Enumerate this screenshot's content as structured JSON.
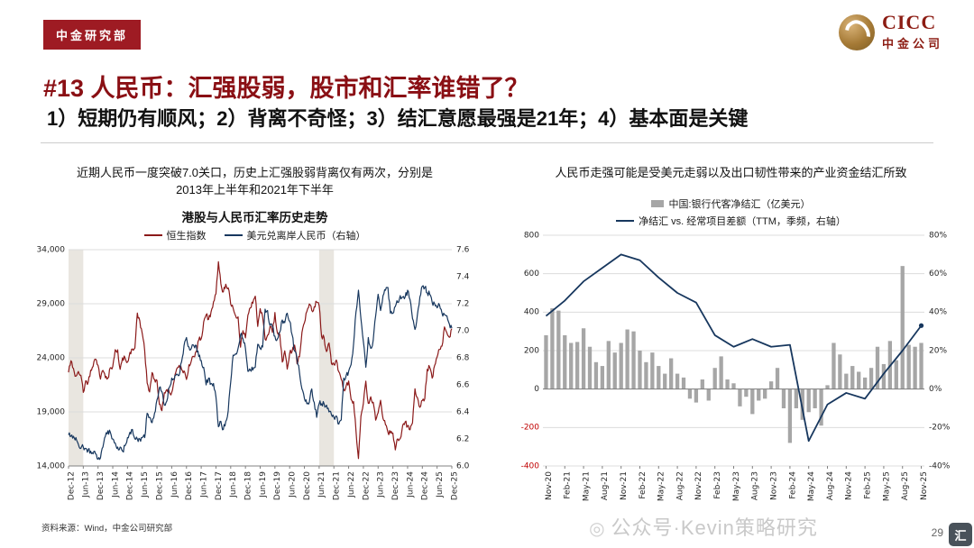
{
  "page": {
    "badge": "中金研究部",
    "logo_en": "CICC",
    "logo_cn": "中金公司",
    "title": "#13 人民币：汇强股弱，股市和汇率谁错了？",
    "subtitle": "1）短期仍有顺风；2）背离不奇怪；3）结汇意愿最强是21年；4）基本面是关键",
    "left_caption_line1": "近期人民币一度突破7.0关口，历史上汇强股弱背离仅有两次，分别是",
    "left_caption_line2": "2013年上半年和2021年下半年",
    "right_caption": "人民币走强可能是受美元走弱以及出口韧性带来的产业资金结汇所致",
    "source": "资料来源：Wind，中金公司研究部",
    "watermark_icon": "◎",
    "watermark": "公众号·Kevin策略研究",
    "page_number": "29",
    "corner_logo": "汇",
    "accent_color": "#8A0F14"
  },
  "chart_data": [
    {
      "type": "line",
      "title": "港股与人民币汇率历史走势",
      "legend": [
        {
          "label": "恒生指数",
          "color": "#8B1A1A"
        },
        {
          "label": "美元兑离岸人民币（右轴）",
          "color": "#17375E"
        }
      ],
      "left_axis": {
        "min": 14000,
        "max": 34000,
        "step": 5000
      },
      "right_axis": {
        "min": 6.0,
        "max": 7.6,
        "step": 0.2
      },
      "x_tick_every": 6,
      "x_tick_labels": [
        "Dec-12",
        "Jun-13",
        "Dec-13",
        "Jun-14",
        "Dec-14",
        "Jun-15",
        "Dec-15",
        "Jun-16",
        "Dec-16",
        "Jun-17",
        "Dec-17",
        "Jun-18",
        "Dec-18",
        "Jun-19",
        "Dec-19",
        "Jun-20",
        "Dec-20",
        "Jun-21",
        "Dec-21",
        "Jun-22",
        "Dec-22",
        "Jun-23",
        "Dec-23",
        "Jun-24",
        "Dec-24",
        "Jun-25",
        "Dec-25"
      ],
      "shaded_regions_idx": [
        [
          0,
          6
        ],
        [
          102,
          108
        ]
      ],
      "shade_color": "#e9e6e0",
      "series_left": [
        22657,
        23730,
        23020,
        22300,
        22737,
        22392,
        20803,
        21884,
        21732,
        22860,
        23206,
        23881,
        23306,
        22035,
        22837,
        22151,
        22134,
        23082,
        23190,
        24757,
        24742,
        22933,
        23998,
        23987,
        23605,
        24507,
        24823,
        24901,
        28133,
        27424,
        26250,
        24636,
        21671,
        20846,
        22640,
        21996,
        21914,
        19683,
        19112,
        20777,
        21067,
        20815,
        20794,
        21891,
        22977,
        23297,
        22935,
        22790,
        22001,
        23361,
        23741,
        24112,
        24615,
        25661,
        25765,
        27324,
        27970,
        27554,
        28246,
        29177,
        29919,
        32887,
        30845,
        30093,
        30808,
        30469,
        28955,
        28583,
        27889,
        27789,
        24980,
        26507,
        25846,
        27942,
        28633,
        29051,
        29699,
        26901,
        28543,
        27778,
        25725,
        26092,
        26907,
        26346,
        28190,
        26313,
        26130,
        23603,
        24644,
        22961,
        24427,
        24595,
        25177,
        23459,
        24107,
        26341,
        27231,
        28284,
        28980,
        28378,
        28725,
        29152,
        28828,
        25961,
        25879,
        24576,
        25377,
        23475,
        23398,
        23802,
        22713,
        21997,
        21089,
        21415,
        21860,
        20157,
        19954,
        17223,
        14687,
        18597,
        19781,
        21842,
        19786,
        20400,
        19895,
        18234,
        18916,
        20079,
        18382,
        17810,
        17112,
        17043,
        17047,
        15485,
        16511,
        16541,
        17763,
        18080,
        17719,
        17345,
        17989,
        21134,
        20317,
        19424,
        20060,
        20225,
        22941,
        23120,
        22119,
        23290,
        24072,
        24773,
        25078,
        26856,
        26300,
        25900,
        26700
      ],
      "series_right": [
        6.23,
        6.22,
        6.22,
        6.21,
        6.16,
        6.13,
        6.14,
        6.13,
        6.12,
        6.11,
        6.09,
        6.09,
        6.05,
        6.06,
        6.14,
        6.22,
        6.26,
        6.25,
        6.2,
        6.17,
        6.14,
        6.14,
        6.11,
        6.15,
        6.21,
        6.25,
        6.27,
        6.2,
        6.2,
        6.2,
        6.21,
        6.21,
        6.39,
        6.36,
        6.32,
        6.39,
        6.49,
        6.58,
        6.55,
        6.45,
        6.48,
        6.58,
        6.65,
        6.64,
        6.68,
        6.67,
        6.77,
        6.89,
        6.95,
        6.88,
        6.87,
        6.89,
        6.89,
        6.81,
        6.78,
        6.73,
        6.6,
        6.65,
        6.61,
        6.61,
        6.51,
        6.29,
        6.33,
        6.27,
        6.33,
        6.41,
        6.62,
        6.82,
        6.83,
        6.87,
        6.97,
        6.94,
        6.87,
        6.7,
        6.71,
        6.71,
        6.73,
        6.9,
        6.87,
        6.88,
        7.16,
        7.15,
        7.04,
        7.03,
        6.96,
        6.94,
        6.99,
        7.08,
        7.06,
        7.13,
        7.07,
        6.97,
        6.85,
        6.79,
        6.69,
        6.57,
        6.5,
        6.46,
        6.47,
        6.57,
        6.47,
        6.36,
        6.46,
        6.46,
        6.46,
        6.45,
        6.4,
        6.38,
        6.36,
        6.37,
        6.31,
        6.34,
        6.65,
        6.67,
        6.7,
        6.75,
        6.9,
        7.14,
        7.3,
        7.09,
        6.92,
        6.73,
        6.95,
        6.87,
        6.93,
        7.11,
        7.27,
        7.15,
        7.26,
        7.3,
        7.32,
        7.13,
        7.13,
        7.18,
        7.21,
        7.26,
        7.25,
        7.25,
        7.3,
        7.23,
        7.09,
        7.01,
        7.12,
        7.25,
        7.33,
        7.32,
        7.28,
        7.27,
        7.21,
        7.2,
        7.17,
        7.19,
        7.13,
        7.12,
        7.11,
        7.05,
        7.02
      ]
    },
    {
      "type": "bar+line",
      "legend": [
        {
          "label": "中国:银行代客净结汇（亿美元）",
          "color": "#A6A6A6",
          "marker": "bar"
        },
        {
          "label": "净结汇 vs. 经常项目差额（TTM，季频，右轴）",
          "color": "#17375E",
          "marker": "line"
        }
      ],
      "left_axis": {
        "min": -400,
        "max": 800,
        "step": 200
      },
      "right_axis": {
        "min": -40,
        "max": 80,
        "step": 20,
        "suffix": "%"
      },
      "x_tick_every": 3,
      "x_tick_labels": [
        "Nov-20",
        "Feb-21",
        "May-21",
        "Aug-21",
        "Nov-21",
        "Feb-22",
        "May-22",
        "Aug-22",
        "Nov-22",
        "Feb-23",
        "May-23",
        "Aug-23",
        "Nov-23",
        "Feb-24",
        "May-24",
        "Aug-24",
        "Nov-24",
        "Feb-25",
        "May-25",
        "Aug-25",
        "Nov-25"
      ],
      "bar_values": [
        280,
        420,
        408,
        280,
        240,
        245,
        316,
        220,
        140,
        120,
        250,
        190,
        240,
        310,
        300,
        200,
        140,
        190,
        120,
        80,
        160,
        80,
        60,
        -50,
        -70,
        50,
        -60,
        110,
        170,
        50,
        30,
        -90,
        -40,
        -130,
        -60,
        -50,
        40,
        110,
        -100,
        -280,
        -100,
        -160,
        -120,
        -100,
        -190,
        20,
        240,
        180,
        80,
        120,
        90,
        60,
        110,
        220,
        130,
        250,
        150,
        640,
        230,
        220,
        240
      ],
      "line_points": {
        "idx": [
          0,
          3,
          6,
          9,
          12,
          15,
          18,
          21,
          24,
          27,
          30,
          33,
          36,
          39,
          42,
          45,
          48,
          51,
          54,
          57,
          60
        ],
        "values": [
          38,
          46,
          56,
          63,
          70,
          67,
          58,
          50,
          45,
          28,
          22,
          26,
          22,
          23,
          -27,
          -8,
          -2,
          -5,
          8,
          20,
          33
        ]
      }
    }
  ]
}
